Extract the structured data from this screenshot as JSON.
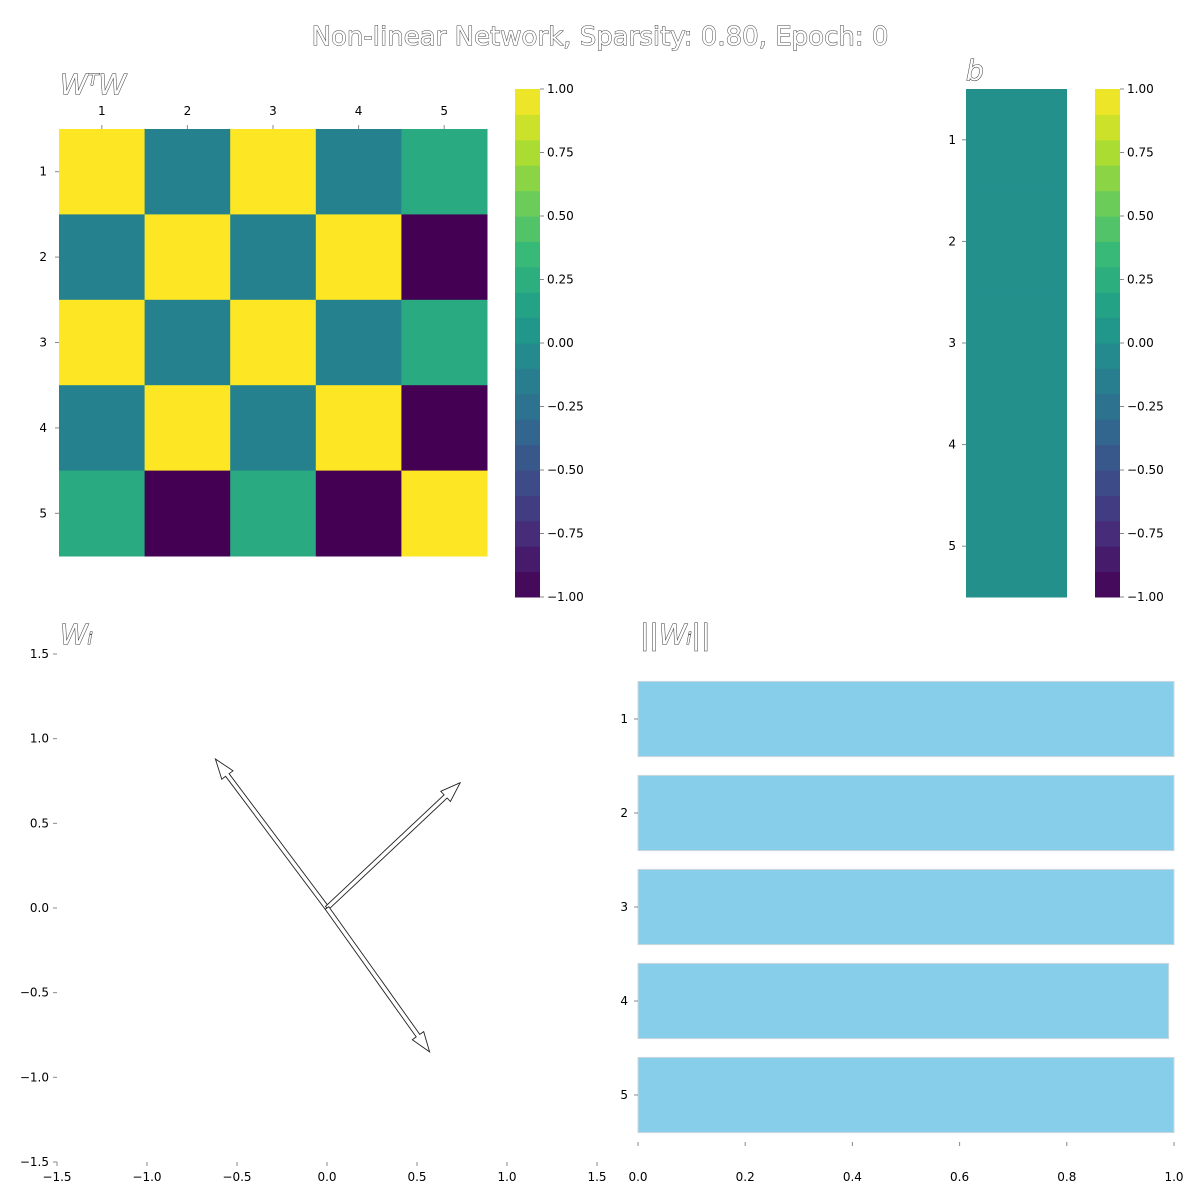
{
  "figure_title": "Non-linear Network, Sparsity: 0.80, Epoch: 0",
  "chart_data": [
    {
      "type": "heatmap",
      "title": "WᵀW",
      "row_labels": [
        "1",
        "2",
        "3",
        "4",
        "5"
      ],
      "col_labels": [
        "1",
        "2",
        "3",
        "4",
        "5"
      ],
      "values": [
        [
          1.0,
          -0.12,
          1.0,
          -0.12,
          0.22
        ],
        [
          -0.12,
          1.0,
          -0.12,
          1.0,
          -1.0
        ],
        [
          1.0,
          -0.12,
          1.0,
          -0.12,
          0.22
        ],
        [
          -0.12,
          1.0,
          -0.12,
          1.0,
          -1.0
        ],
        [
          0.22,
          -1.0,
          0.22,
          -1.0,
          1.0
        ]
      ],
      "colorbar": {
        "min": -1.0,
        "max": 1.0,
        "colormap": "viridis",
        "ticks": [
          "−1.00",
          "−0.75",
          "−0.50",
          "−0.25",
          "0.00",
          "0.25",
          "0.50",
          "0.75",
          "1.00"
        ]
      }
    },
    {
      "type": "heatmap",
      "title": "b",
      "row_labels": [
        "1",
        "2",
        "3",
        "4",
        "5"
      ],
      "values": [
        [
          0.0
        ],
        [
          0.0
        ],
        [
          0.0
        ],
        [
          0.0
        ],
        [
          0.0
        ]
      ],
      "colorbar": {
        "min": -1.0,
        "max": 1.0,
        "colormap": "viridis",
        "ticks": [
          "−1.00",
          "−0.75",
          "−0.50",
          "−0.25",
          "0.00",
          "0.25",
          "0.50",
          "0.75",
          "1.00"
        ]
      }
    },
    {
      "type": "quiver",
      "title": "Wᵢ",
      "xlim": [
        -1.5,
        1.5
      ],
      "ylim": [
        -1.5,
        1.5
      ],
      "x_ticks": [
        "−1.5",
        "−1.0",
        "−0.5",
        "0.0",
        "0.5",
        "1.0",
        "1.5"
      ],
      "y_ticks": [
        "1.5",
        "1.0",
        "0.5",
        "0.0",
        "−0.5",
        "−1.0",
        "−1.5"
      ],
      "vectors": [
        {
          "x": -0.62,
          "y": 0.88
        },
        {
          "x": 0.74,
          "y": 0.74
        },
        {
          "x": 0.57,
          "y": -0.85
        }
      ]
    },
    {
      "type": "bar",
      "orientation": "horizontal",
      "title": "||Wᵢ||",
      "categories": [
        "1",
        "2",
        "3",
        "4",
        "5"
      ],
      "values": [
        1.0,
        1.0,
        1.0,
        0.99,
        1.0
      ],
      "color": "#87CEEB",
      "xlim": [
        0.0,
        1.0
      ],
      "x_ticks": [
        "0.0",
        "0.2",
        "0.4",
        "0.6",
        "0.8",
        "1.0"
      ]
    }
  ]
}
